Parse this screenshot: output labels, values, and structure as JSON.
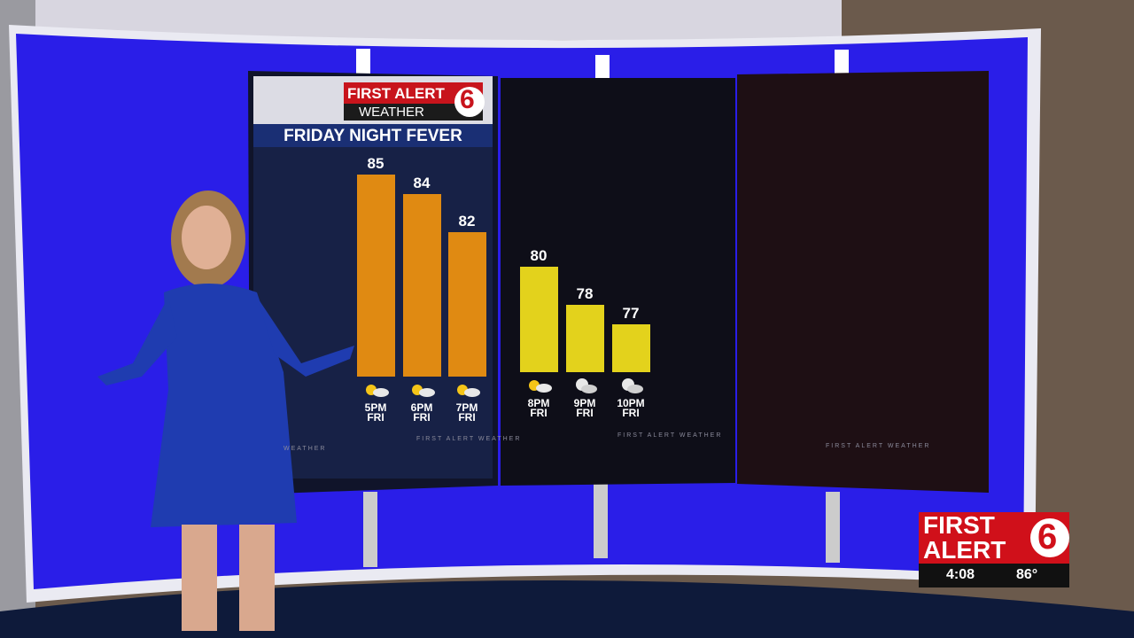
{
  "chart_data": {
    "type": "bar",
    "title": "FRIDAY NIGHT FEVER",
    "categories": [
      "5PM FRI",
      "6PM FRI",
      "7PM FRI",
      "8PM FRI",
      "9PM FRI",
      "10PM FRI"
    ],
    "values": [
      85,
      84,
      82,
      80,
      78,
      77
    ],
    "colors": [
      "#e08a12",
      "#e08a12",
      "#e08a12",
      "#e3d21c",
      "#e3d21c",
      "#e3d21c"
    ],
    "ylim": [
      74.5,
      85
    ]
  },
  "logo": {
    "top": "FIRST ALERT",
    "bottom": "WEATHER",
    "number": "6"
  },
  "watermarks": [
    "WEATHER",
    "FIRST ALERT WEATHER",
    "FIRST ALERT WEATHER",
    "FIRST ALERT WEATHER"
  ],
  "bug": {
    "line1": "FIRST",
    "line2": "ALERT",
    "number": "6",
    "time": "4:08",
    "temperature": "86°"
  }
}
